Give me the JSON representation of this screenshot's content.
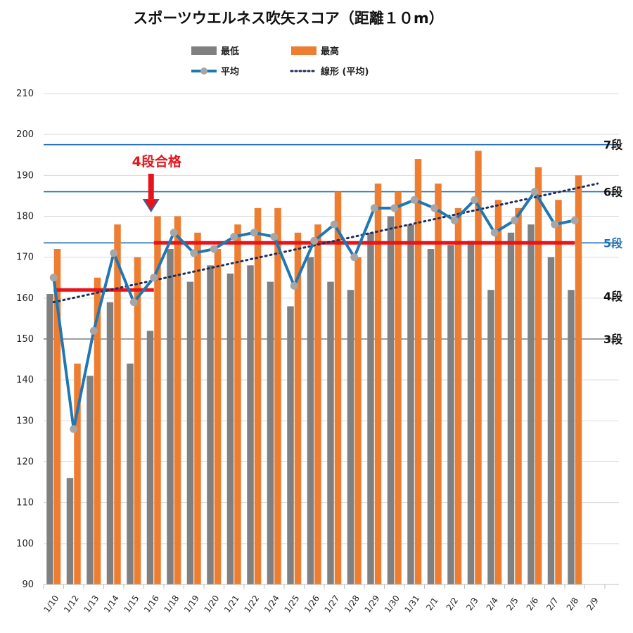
{
  "chart_data": {
    "type": "bar",
    "title": "スポーツウエルネス吹矢スコア（距離１０m）",
    "categories": [
      "1/10",
      "1/12",
      "1/13",
      "1/14",
      "1/15",
      "1/16",
      "1/18",
      "1/19",
      "1/20",
      "1/21",
      "1/22",
      "1/24",
      "1/25",
      "1/26",
      "1/27",
      "1/28",
      "1/29",
      "1/30",
      "1/31",
      "2/1",
      "2/2",
      "2/3",
      "2/4",
      "2/5",
      "2/6",
      "2/7",
      "2/8",
      "2/9"
    ],
    "series": [
      {
        "name": "最低",
        "type": "bar",
        "color": "#808080",
        "values": [
          161,
          116,
          141,
          159,
          144,
          152,
          172,
          164,
          168,
          166,
          168,
          164,
          158,
          170,
          164,
          162,
          176,
          180,
          178,
          172,
          173,
          174,
          162,
          176,
          178,
          170,
          162,
          null
        ]
      },
      {
        "name": "最高",
        "type": "bar",
        "color": "#ed7d31",
        "values": [
          172,
          144,
          165,
          178,
          170,
          180,
          180,
          176,
          172,
          178,
          182,
          182,
          176,
          178,
          186,
          170,
          188,
          186,
          194,
          188,
          182,
          196,
          184,
          182,
          192,
          184,
          190,
          null
        ]
      },
      {
        "name": "平均",
        "type": "line",
        "color": "#1f77b4",
        "values": [
          165,
          128,
          152,
          171,
          159,
          165,
          176,
          171,
          172,
          175,
          176,
          175,
          163,
          174,
          178,
          170,
          182,
          182,
          184,
          182,
          179,
          184,
          176,
          179,
          186,
          178,
          179,
          null
        ]
      },
      {
        "name": "線形 (平均)",
        "type": "trendline",
        "color": "#1f2d5c",
        "start": 159,
        "end": 188
      }
    ],
    "ylim": [
      90,
      210
    ],
    "yticks": [
      90,
      100,
      110,
      120,
      130,
      140,
      150,
      160,
      170,
      180,
      190,
      200,
      210
    ],
    "grid": true,
    "legend_position": "top",
    "reference_lines": [
      {
        "label": "7段",
        "value": 197.5,
        "color": "#1f6fb5",
        "label_color": "#111111"
      },
      {
        "label": "6段",
        "value": 186,
        "color": "#1f6fb5",
        "label_color": "#111111"
      },
      {
        "label": "5段",
        "value": 173.5,
        "color": "#1f6fb5",
        "label_color": "#1f6fb5"
      },
      {
        "label": "4段",
        "value": null,
        "color": null,
        "label_color": "#111111"
      },
      {
        "label": "3段",
        "value": 150,
        "color": "#7f7f7f",
        "label_color": "#111111"
      }
    ],
    "level_bars": [
      {
        "from": "1/10",
        "to": "1/16",
        "value": 162
      },
      {
        "from": "1/16",
        "to": "2/8",
        "value": 173.5
      }
    ],
    "annotation": {
      "text": "4段合格",
      "at_category": "1/16"
    }
  },
  "colors": {
    "bar_low": "#808080",
    "bar_high": "#ed7d31",
    "avg_line": "#1f77b4",
    "avg_marker": "#a6a6a6",
    "trend": "#1f2d5c",
    "level_red": "#e8141b"
  }
}
